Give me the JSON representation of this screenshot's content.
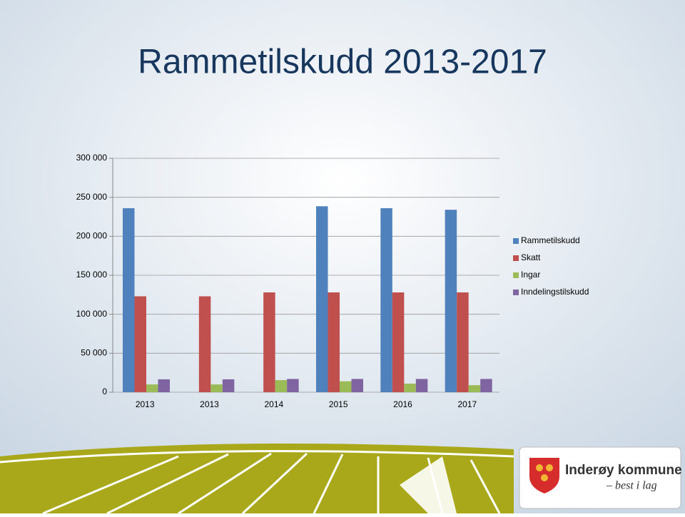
{
  "chart_data": {
    "type": "bar",
    "title": "Rammetilskudd 2013-2017",
    "categories": [
      "2013",
      "2013",
      "2014",
      "2015",
      "2016",
      "2017"
    ],
    "series": [
      {
        "name": "Rammetilskudd",
        "color": "#4f81bd",
        "values": [
          236000,
          null,
          null,
          238500,
          236000,
          234000
        ]
      },
      {
        "name": "Skatt",
        "color": "#c0504d",
        "values": [
          123000,
          123000,
          128000,
          128000,
          128000,
          128000
        ]
      },
      {
        "name": "Ingar",
        "color": "#9bbb59",
        "values": [
          10000,
          10000,
          15500,
          14000,
          11000,
          9000
        ]
      },
      {
        "name": "Inndelingstilskudd",
        "color": "#8064a2",
        "values": [
          16500,
          16500,
          17000,
          17000,
          17000,
          17000
        ]
      }
    ],
    "ylim": [
      0,
      300000
    ],
    "yticks": [
      0,
      {
        "value": 50000,
        "label": "50 000"
      },
      {
        "value": 100000,
        "label": "100 000"
      },
      {
        "value": 150000,
        "label": "150 000"
      },
      {
        "value": 200000,
        "label": "200 000"
      },
      {
        "value": 250000,
        "label": "250 000"
      },
      {
        "value": 300000,
        "label": "300 000"
      }
    ],
    "grid": true,
    "legend": "right"
  },
  "logo": {
    "name": "Inderøy kommune",
    "slogan": "– best i lag"
  }
}
